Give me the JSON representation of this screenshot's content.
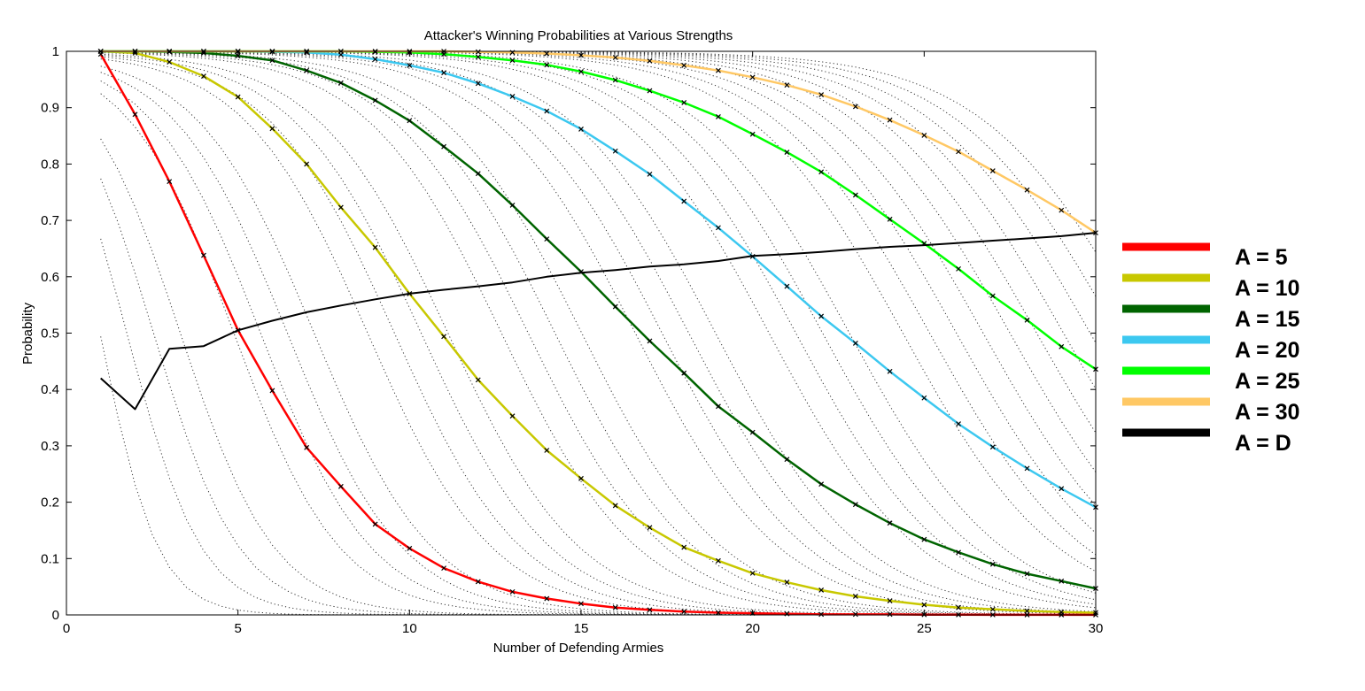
{
  "chart_data": {
    "type": "line",
    "title": "Attacker's Winning Probabilities at Various Strengths",
    "xlabel": "Number of Defending Armies",
    "ylabel": "Probability",
    "xlim": [
      0,
      30
    ],
    "ylim": [
      0,
      1
    ],
    "xticks": [
      0,
      5,
      10,
      15,
      20,
      25,
      30
    ],
    "xtick_labels": [
      "0",
      "5",
      "10",
      "15",
      "20",
      "25",
      "30"
    ],
    "yticks": [
      0,
      0.1,
      0.2,
      0.3,
      0.4,
      0.5,
      0.6,
      0.7,
      0.8,
      0.9,
      1
    ],
    "ytick_labels": [
      "0",
      "0.1",
      "0.2",
      "0.3",
      "0.4",
      "0.5",
      "0.6",
      "0.7",
      "0.8",
      "0.9",
      "1"
    ],
    "grid": false,
    "legend_position": "right",
    "x": [
      1,
      2,
      3,
      4,
      5,
      6,
      7,
      8,
      9,
      10,
      11,
      12,
      13,
      14,
      15,
      16,
      17,
      18,
      19,
      20,
      21,
      22,
      23,
      24,
      25,
      26,
      27,
      28,
      29,
      30
    ],
    "series": [
      {
        "name": "A = 5",
        "color": "#ff0000",
        "values": [
          0.995,
          0.888,
          0.769,
          0.638,
          0.505,
          0.398,
          0.297,
          0.228,
          0.161,
          0.118,
          0.083,
          0.059,
          0.041,
          0.029,
          0.02,
          0.013,
          0.009,
          0.006,
          0.004,
          0.003,
          0.002,
          0.001,
          0.001,
          0.001,
          0.0005,
          0.0003,
          0.0002,
          0.0001,
          0.0001,
          0.0001
        ]
      },
      {
        "name": "A = 10",
        "color": "#c8c800",
        "values": [
          1.0,
          0.997,
          0.981,
          0.956,
          0.919,
          0.863,
          0.8,
          0.723,
          0.652,
          0.57,
          0.494,
          0.417,
          0.353,
          0.292,
          0.242,
          0.194,
          0.155,
          0.12,
          0.096,
          0.074,
          0.058,
          0.044,
          0.033,
          0.025,
          0.018,
          0.013,
          0.01,
          0.007,
          0.005,
          0.004
        ]
      },
      {
        "name": "A = 15",
        "color": "#006400",
        "values": [
          1.0,
          1.0,
          0.999,
          0.997,
          0.992,
          0.984,
          0.966,
          0.944,
          0.913,
          0.877,
          0.831,
          0.783,
          0.727,
          0.667,
          0.609,
          0.547,
          0.486,
          0.429,
          0.37,
          0.324,
          0.276,
          0.232,
          0.196,
          0.163,
          0.134,
          0.111,
          0.09,
          0.073,
          0.06,
          0.047
        ]
      },
      {
        "name": "A = 20",
        "color": "#3cc8f0",
        "values": [
          1.0,
          1.0,
          1.0,
          1.0,
          1.0,
          0.999,
          0.998,
          0.994,
          0.986,
          0.975,
          0.962,
          0.943,
          0.92,
          0.894,
          0.862,
          0.823,
          0.782,
          0.734,
          0.687,
          0.636,
          0.583,
          0.53,
          0.482,
          0.432,
          0.385,
          0.339,
          0.298,
          0.26,
          0.224,
          0.191
        ]
      },
      {
        "name": "A = 25",
        "color": "#00ff00",
        "values": [
          1.0,
          1.0,
          1.0,
          1.0,
          1.0,
          1.0,
          1.0,
          1.0,
          0.999,
          0.998,
          0.995,
          0.99,
          0.984,
          0.976,
          0.964,
          0.949,
          0.93,
          0.909,
          0.884,
          0.853,
          0.821,
          0.786,
          0.745,
          0.702,
          0.659,
          0.614,
          0.566,
          0.523,
          0.476,
          0.436
        ]
      },
      {
        "name": "A = 30",
        "color": "#ffc864",
        "values": [
          1.0,
          1.0,
          1.0,
          1.0,
          1.0,
          1.0,
          1.0,
          1.0,
          1.0,
          1.0,
          1.0,
          0.999,
          0.998,
          0.996,
          0.993,
          0.989,
          0.983,
          0.975,
          0.966,
          0.954,
          0.94,
          0.923,
          0.902,
          0.878,
          0.851,
          0.822,
          0.788,
          0.754,
          0.718,
          0.678
        ]
      },
      {
        "name": "A = D",
        "color": "#000000",
        "values": [
          0.42,
          0.365,
          0.472,
          0.477,
          0.505,
          0.522,
          0.537,
          0.549,
          0.56,
          0.57,
          0.577,
          0.583,
          0.59,
          0.6,
          0.607,
          0.612,
          0.618,
          0.622,
          0.628,
          0.637,
          0.64,
          0.644,
          0.649,
          0.653,
          0.656,
          0.66,
          0.664,
          0.668,
          0.672,
          0.678
        ]
      }
    ],
    "background_attacker_strengths": [
      1,
      2,
      3,
      4,
      6,
      7,
      8,
      9,
      11,
      12,
      13,
      14,
      16,
      17,
      18,
      19,
      21,
      22,
      23,
      24,
      26,
      27,
      28,
      29,
      31,
      32,
      33,
      34,
      35,
      36,
      37,
      38,
      39,
      40
    ]
  }
}
